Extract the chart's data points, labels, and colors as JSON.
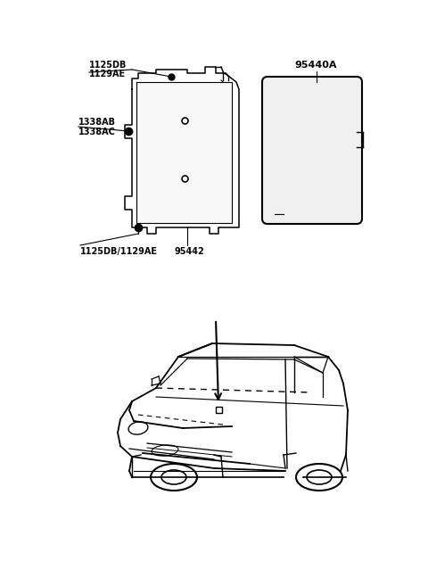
{
  "background_color": "#ffffff",
  "fig_width": 4.8,
  "fig_height": 6.57,
  "dpi": 100,
  "labels": {
    "top_left_label1": "1125DB",
    "top_left_label2": "1129AE",
    "mid_left_label1": "1338AB",
    "mid_left_label2": "1338AC",
    "bottom_left_label": "1125DB/1129AE",
    "center_bottom_label": "95442",
    "top_right_label": "95440A"
  },
  "line_color": "#000000",
  "label_color": "#333333",
  "font_size": 7.0
}
